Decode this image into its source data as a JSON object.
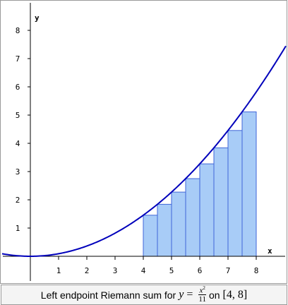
{
  "chart_data": {
    "type": "area",
    "function": "x^2/11",
    "interval": [
      4,
      8
    ],
    "n": 8,
    "dx": 0.5,
    "rectangles": [
      {
        "x_left": 4.0,
        "height": 1.4545
      },
      {
        "x_left": 4.5,
        "height": 1.8409
      },
      {
        "x_left": 5.0,
        "height": 2.2727
      },
      {
        "x_left": 5.5,
        "height": 2.75
      },
      {
        "x_left": 6.0,
        "height": 3.2727
      },
      {
        "x_left": 6.5,
        "height": 3.8409
      },
      {
        "x_left": 7.0,
        "height": 4.4545
      },
      {
        "x_left": 7.5,
        "height": 5.1136
      }
    ],
    "xlim": [
      -1,
      9
    ],
    "ylim": [
      -1,
      9
    ],
    "x_ticks": [
      1,
      2,
      3,
      4,
      5,
      6,
      7,
      8
    ],
    "y_ticks": [
      1,
      2,
      3,
      4,
      5,
      6,
      7,
      8
    ],
    "x_tick_labels": [
      "1",
      "2",
      "3",
      "4",
      "5",
      "6",
      "7",
      "8"
    ],
    "y_tick_labels": [
      "1",
      "2",
      "3",
      "4",
      "5",
      "6",
      "7",
      "8"
    ],
    "xlabel": "x",
    "ylabel": "y",
    "grid": false
  },
  "caption": {
    "prefix": "Left endpoint Riemann sum for",
    "y_var": "y",
    "equals": "=",
    "num_base": "x",
    "num_exp": "2",
    "den": "11",
    "on": "on",
    "interval": "[4, 8]"
  },
  "colors": {
    "curve": "#0000bb",
    "rect_fill": "#a8ccf7",
    "rect_stroke": "#3f66d8",
    "axis": "#000000"
  }
}
